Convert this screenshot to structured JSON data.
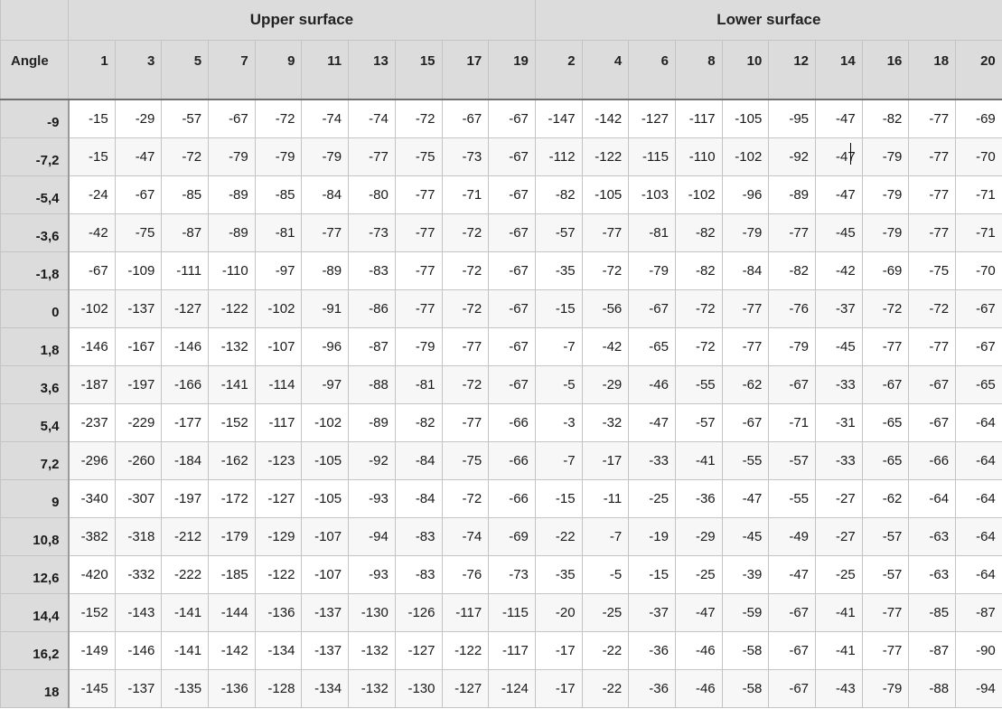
{
  "table": {
    "group_upper": "Upper surface",
    "group_lower": "Lower surface",
    "angle_header": "Angle",
    "upper_cols": [
      "1",
      "3",
      "5",
      "7",
      "9",
      "11",
      "13",
      "15",
      "17",
      "19"
    ],
    "lower_cols": [
      "2",
      "4",
      "6",
      "8",
      "10",
      "12",
      "14",
      "16",
      "18",
      "20"
    ],
    "rows": [
      {
        "angle": "-9",
        "upper": [
          "-15",
          "-29",
          "-57",
          "-67",
          "-72",
          "-74",
          "-74",
          "-72",
          "-67",
          "-67"
        ],
        "lower": [
          "-147",
          "-142",
          "-127",
          "-117",
          "-105",
          "-95",
          "-47",
          "-82",
          "-77",
          "-69"
        ]
      },
      {
        "angle": "-7,2",
        "upper": [
          "-15",
          "-47",
          "-72",
          "-79",
          "-79",
          "-79",
          "-77",
          "-75",
          "-73",
          "-67"
        ],
        "lower": [
          "-112",
          "-122",
          "-115",
          "-110",
          "-102",
          "-92",
          "-47",
          "-79",
          "-77",
          "-70"
        ]
      },
      {
        "angle": "-5,4",
        "upper": [
          "-24",
          "-67",
          "-85",
          "-89",
          "-85",
          "-84",
          "-80",
          "-77",
          "-71",
          "-67"
        ],
        "lower": [
          "-82",
          "-105",
          "-103",
          "-102",
          "-96",
          "-89",
          "-47",
          "-79",
          "-77",
          "-71"
        ]
      },
      {
        "angle": "-3,6",
        "upper": [
          "-42",
          "-75",
          "-87",
          "-89",
          "-81",
          "-77",
          "-73",
          "-77",
          "-72",
          "-67"
        ],
        "lower": [
          "-57",
          "-77",
          "-81",
          "-82",
          "-79",
          "-77",
          "-45",
          "-79",
          "-77",
          "-71"
        ]
      },
      {
        "angle": "-1,8",
        "upper": [
          "-67",
          "-109",
          "-111",
          "-110",
          "-97",
          "-89",
          "-83",
          "-77",
          "-72",
          "-67"
        ],
        "lower": [
          "-35",
          "-72",
          "-79",
          "-82",
          "-84",
          "-82",
          "-42",
          "-69",
          "-75",
          "-70"
        ]
      },
      {
        "angle": "0",
        "upper": [
          "-102",
          "-137",
          "-127",
          "-122",
          "-102",
          "-91",
          "-86",
          "-77",
          "-72",
          "-67"
        ],
        "lower": [
          "-15",
          "-56",
          "-67",
          "-72",
          "-77",
          "-76",
          "-37",
          "-72",
          "-72",
          "-67"
        ]
      },
      {
        "angle": "1,8",
        "upper": [
          "-146",
          "-167",
          "-146",
          "-132",
          "-107",
          "-96",
          "-87",
          "-79",
          "-77",
          "-67"
        ],
        "lower": [
          "-7",
          "-42",
          "-65",
          "-72",
          "-77",
          "-79",
          "-45",
          "-77",
          "-77",
          "-67"
        ]
      },
      {
        "angle": "3,6",
        "upper": [
          "-187",
          "-197",
          "-166",
          "-141",
          "-114",
          "-97",
          "-88",
          "-81",
          "-72",
          "-67"
        ],
        "lower": [
          "-5",
          "-29",
          "-46",
          "-55",
          "-62",
          "-67",
          "-33",
          "-67",
          "-67",
          "-65"
        ]
      },
      {
        "angle": "5,4",
        "upper": [
          "-237",
          "-229",
          "-177",
          "-152",
          "-117",
          "-102",
          "-89",
          "-82",
          "-77",
          "-66"
        ],
        "lower": [
          "-3",
          "-32",
          "-47",
          "-57",
          "-67",
          "-71",
          "-31",
          "-65",
          "-67",
          "-64"
        ]
      },
      {
        "angle": "7,2",
        "upper": [
          "-296",
          "-260",
          "-184",
          "-162",
          "-123",
          "-105",
          "-92",
          "-84",
          "-75",
          "-66"
        ],
        "lower": [
          "-7",
          "-17",
          "-33",
          "-41",
          "-55",
          "-57",
          "-33",
          "-65",
          "-66",
          "-64"
        ]
      },
      {
        "angle": "9",
        "upper": [
          "-340",
          "-307",
          "-197",
          "-172",
          "-127",
          "-105",
          "-93",
          "-84",
          "-72",
          "-66"
        ],
        "lower": [
          "-15",
          "-11",
          "-25",
          "-36",
          "-47",
          "-55",
          "-27",
          "-62",
          "-64",
          "-64"
        ]
      },
      {
        "angle": "10,8",
        "upper": [
          "-382",
          "-318",
          "-212",
          "-179",
          "-129",
          "-107",
          "-94",
          "-83",
          "-74",
          "-69"
        ],
        "lower": [
          "-22",
          "-7",
          "-19",
          "-29",
          "-45",
          "-49",
          "-27",
          "-57",
          "-63",
          "-64"
        ]
      },
      {
        "angle": "12,6",
        "upper": [
          "-420",
          "-332",
          "-222",
          "-185",
          "-122",
          "-107",
          "-93",
          "-83",
          "-76",
          "-73"
        ],
        "lower": [
          "-35",
          "-5",
          "-15",
          "-25",
          "-39",
          "-47",
          "-25",
          "-57",
          "-63",
          "-64"
        ]
      },
      {
        "angle": "14,4",
        "upper": [
          "-152",
          "-143",
          "-141",
          "-144",
          "-136",
          "-137",
          "-130",
          "-126",
          "-117",
          "-115"
        ],
        "lower": [
          "-20",
          "-25",
          "-37",
          "-47",
          "-59",
          "-67",
          "-41",
          "-77",
          "-85",
          "-87"
        ]
      },
      {
        "angle": "16,2",
        "upper": [
          "-149",
          "-146",
          "-141",
          "-142",
          "-134",
          "-137",
          "-132",
          "-127",
          "-122",
          "-117"
        ],
        "lower": [
          "-17",
          "-22",
          "-36",
          "-46",
          "-58",
          "-67",
          "-41",
          "-77",
          "-87",
          "-90"
        ]
      },
      {
        "angle": "18",
        "upper": [
          "-145",
          "-137",
          "-135",
          "-136",
          "-128",
          "-134",
          "-132",
          "-130",
          "-127",
          "-124"
        ],
        "lower": [
          "-17",
          "-22",
          "-36",
          "-46",
          "-58",
          "-67",
          "-43",
          "-79",
          "-88",
          "-94"
        ]
      }
    ]
  }
}
